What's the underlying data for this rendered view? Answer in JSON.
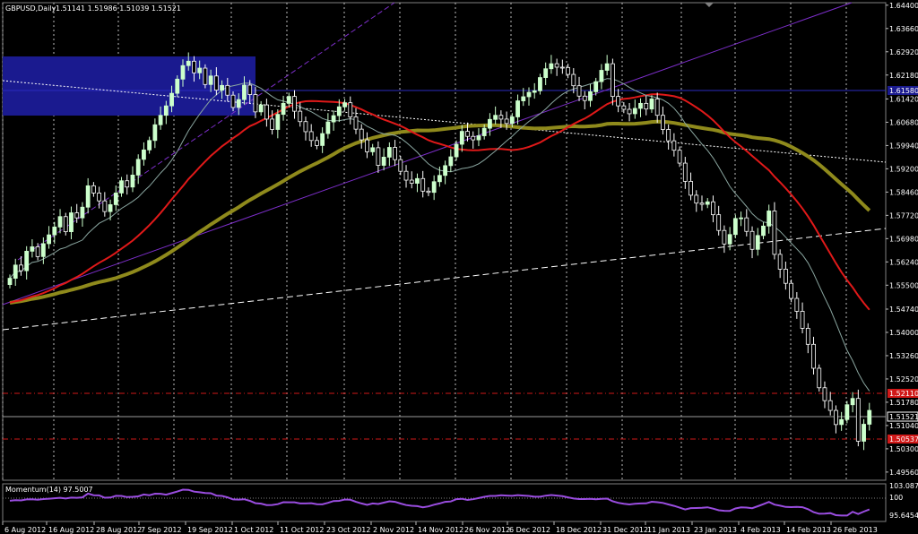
{
  "header": {
    "symbol": "GBPUSD,Daily",
    "ohlc": "1.51141 1.51986 1.51039 1.51521",
    "indicator": "Momentum(14) 97.5007"
  },
  "colors": {
    "background": "#000000",
    "bull": "#ccffcc",
    "bear": "#ffffff",
    "ma_fast": "#8aa6a0",
    "ma_mid": "#e01919",
    "ma_slow": "#8f8a1c",
    "zone": "#1a1a8f",
    "purple_line": "#7c2ec9",
    "momentum": "#9a4de0",
    "red_level": "#d01818"
  },
  "chart_data": {
    "type": "candlestick",
    "price_axis": {
      "min": 1.493,
      "max": 1.6448,
      "ticks": [
        "1.64400",
        "1.63660",
        "1.62920",
        "1.62180",
        "1.61420",
        "1.60680",
        "1.59940",
        "1.59200",
        "1.58460",
        "1.57720",
        "1.56980",
        "1.56240",
        "1.55500",
        "1.54740",
        "1.54000",
        "1.53260",
        "1.52520",
        "1.51780",
        "1.51040",
        "1.50300",
        "1.49560"
      ]
    },
    "price_labels": {
      "current": "1.51521",
      "level_upper": "1.52110",
      "level_lower": "1.50537",
      "zone_line": "1.61580"
    },
    "time_axis": [
      "6 Aug 2012",
      "16 Aug 2012",
      "28 Aug 2012",
      "7 Sep 2012",
      "19 Sep 2012",
      "1 Oct 2012",
      "11 Oct 2012",
      "23 Oct 2012",
      "2 Nov 2012",
      "14 Nov 2012",
      "26 Nov 2012",
      "6 Dec 2012",
      "18 Dec 2012",
      "31 Dec 2012",
      "11 Jan 2013",
      "23 Jan 2013",
      "4 Feb 2013",
      "14 Feb 2013",
      "26 Feb 2013"
    ],
    "closes": [
      1.5572,
      1.5614,
      1.5596,
      1.5658,
      1.5672,
      1.5641,
      1.5682,
      1.571,
      1.5735,
      1.5768,
      1.572,
      1.578,
      1.5764,
      1.5798,
      1.5866,
      1.5843,
      1.5818,
      1.5784,
      1.5806,
      1.5843,
      1.5882,
      1.5862,
      1.59,
      1.595,
      1.598,
      1.601,
      1.606,
      1.609,
      1.612,
      1.616,
      1.6205,
      1.6248,
      1.6262,
      1.6225,
      1.624,
      1.6188,
      1.6215,
      1.617,
      1.6185,
      1.6154,
      1.6115,
      1.614,
      1.6186,
      1.6156,
      1.6101,
      1.6123,
      1.6078,
      1.6045,
      1.6093,
      1.6128,
      1.615,
      1.6103,
      1.607,
      1.6038,
      1.601,
      1.5994,
      1.6032,
      1.6069,
      1.6089,
      1.6117,
      1.613,
      1.6085,
      1.6046,
      1.6012,
      1.5974,
      1.5987,
      1.5931,
      1.5957,
      1.5988,
      1.5949,
      1.5912,
      1.5884,
      1.5874,
      1.5889,
      1.5849,
      1.5845,
      1.5879,
      1.5899,
      1.593,
      1.5958,
      1.5998,
      1.6039,
      1.6023,
      1.6012,
      1.6025,
      1.6049,
      1.6077,
      1.609,
      1.6078,
      1.6064,
      1.6085,
      1.6136,
      1.6149,
      1.6163,
      1.6168,
      1.621,
      1.6238,
      1.6254,
      1.6243,
      1.6242,
      1.622,
      1.6184,
      1.6151,
      1.6137,
      1.6165,
      1.6197,
      1.6233,
      1.6254,
      1.615,
      1.612,
      1.6109,
      1.6095,
      1.6112,
      1.6128,
      1.611,
      1.6142,
      1.609,
      1.6045,
      1.6009,
      1.5979,
      1.5938,
      1.588,
      1.5836,
      1.5811,
      1.5807,
      1.5815,
      1.5774,
      1.5724,
      1.5681,
      1.5711,
      1.5762,
      1.5764,
      1.5721,
      1.5664,
      1.5708,
      1.5738,
      1.5786,
      1.5648,
      1.5601,
      1.5556,
      1.5508,
      1.5467,
      1.5413,
      1.5362,
      1.5286,
      1.5224,
      1.5183,
      1.5152,
      1.5107,
      1.5123,
      1.517,
      1.519,
      1.5054,
      1.5108,
      1.5152
    ]
  },
  "momentum_axis": {
    "ticks": [
      "103.0876",
      "100",
      "95.6454"
    ]
  }
}
